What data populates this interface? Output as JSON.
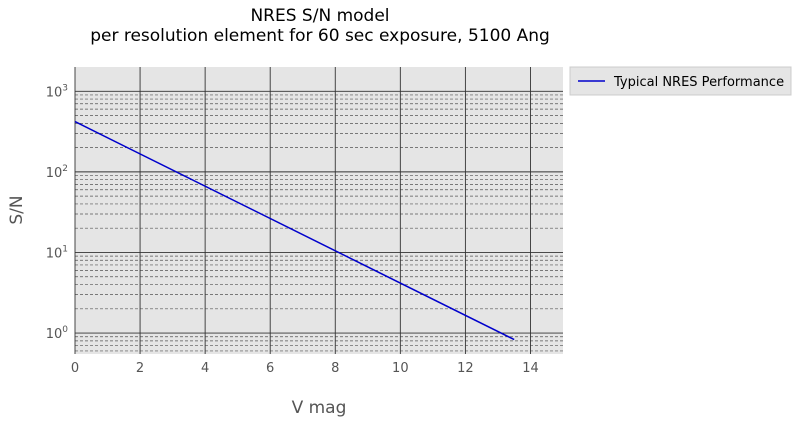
{
  "chart_data": {
    "type": "line",
    "title": "NRES S/N model",
    "subtitle": "per resolution element for 60 sec exposure, 5100 Ang",
    "xlabel": "V mag",
    "ylabel": "S/N",
    "xlim": [
      0,
      15
    ],
    "ylim": [
      0.55,
      2000
    ],
    "yscale": "log",
    "grid": true,
    "legend_position": "outside-right",
    "x_ticks": [
      "0",
      "2",
      "4",
      "6",
      "8",
      "10",
      "12",
      "14"
    ],
    "y_ticks": [
      {
        "base": "10",
        "exp": "0"
      },
      {
        "base": "10",
        "exp": "1"
      },
      {
        "base": "10",
        "exp": "2"
      },
      {
        "base": "10",
        "exp": "3"
      }
    ],
    "series": [
      {
        "name": "Typical NRES Performance",
        "color": "#0000cc",
        "x": [
          0,
          13.5
        ],
        "y": [
          420,
          0.83
        ]
      }
    ]
  }
}
